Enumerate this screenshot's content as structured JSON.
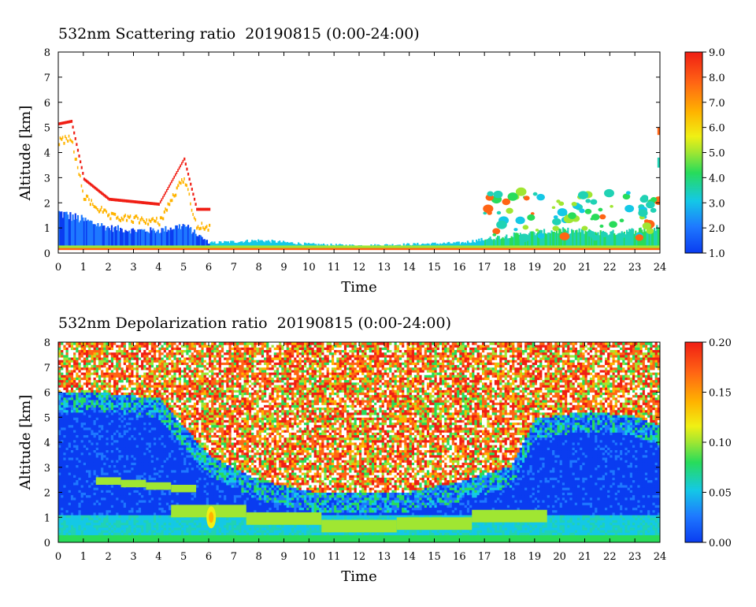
{
  "chart_data": [
    {
      "type": "heatmap",
      "title": "532nm Scattering ratio  20190815 (0:00-24:00)",
      "xlabel": "Time",
      "ylabel": "Altitude [km]",
      "xlim": [
        0,
        24
      ],
      "ylim": [
        0,
        8
      ],
      "x_ticks": [
        "0",
        "1",
        "2",
        "3",
        "4",
        "5",
        "6",
        "7",
        "8",
        "9",
        "10",
        "11",
        "12",
        "13",
        "14",
        "15",
        "16",
        "17",
        "18",
        "19",
        "20",
        "21",
        "22",
        "23",
        "24"
      ],
      "y_ticks": [
        "0",
        "1",
        "2",
        "3",
        "4",
        "5",
        "6",
        "7",
        "8"
      ],
      "colorbar": {
        "range": [
          1.0,
          9.0
        ],
        "ticks": [
          "1.0",
          "2.0",
          "3.0",
          "4.0",
          "5.0",
          "6.0",
          "7.0",
          "8.0",
          "9.0"
        ]
      },
      "features": {
        "surface_layer_top_km": [
          [
            0,
            1.6
          ],
          [
            1,
            1.3
          ],
          [
            2,
            1.0
          ],
          [
            3,
            0.9
          ],
          [
            4,
            0.9
          ],
          [
            5,
            1.1
          ],
          [
            6,
            0.4
          ],
          [
            8,
            0.5
          ],
          [
            10,
            0.35
          ],
          [
            12,
            0.3
          ],
          [
            14,
            0.35
          ],
          [
            16,
            0.4
          ],
          [
            18,
            0.7
          ],
          [
            20,
            0.9
          ],
          [
            22,
            0.8
          ],
          [
            24,
            1.0
          ]
        ],
        "cloud_top_km": [
          [
            0,
            5.2
          ],
          [
            0.5,
            5.3
          ],
          [
            1,
            3.0
          ],
          [
            2,
            2.2
          ],
          [
            3,
            2.1
          ],
          [
            4,
            2.0
          ],
          [
            5,
            3.8
          ],
          [
            5.5,
            1.8
          ]
        ]
      }
    },
    {
      "type": "heatmap",
      "title": "532nm Depolarization ratio  20190815 (0:00-24:00)",
      "xlabel": "Time",
      "ylabel": "Altitude [km]",
      "xlim": [
        0,
        24
      ],
      "ylim": [
        0,
        8
      ],
      "x_ticks": [
        "0",
        "1",
        "2",
        "3",
        "4",
        "5",
        "6",
        "7",
        "8",
        "9",
        "10",
        "11",
        "12",
        "13",
        "14",
        "15",
        "16",
        "17",
        "18",
        "19",
        "20",
        "21",
        "22",
        "23",
        "24"
      ],
      "y_ticks": [
        "0",
        "1",
        "2",
        "3",
        "4",
        "5",
        "6",
        "7",
        "8"
      ],
      "colorbar": {
        "range": [
          0.0,
          0.2
        ],
        "ticks": [
          "0.00",
          "0.05",
          "0.10",
          "0.15",
          "0.20"
        ]
      },
      "features": {
        "low_depol_layer_top_km": [
          [
            0,
            5.5
          ],
          [
            2,
            5.5
          ],
          [
            4,
            5.3
          ],
          [
            6,
            3.0
          ],
          [
            8,
            2.0
          ],
          [
            10,
            1.6
          ],
          [
            12,
            1.5
          ],
          [
            14,
            1.6
          ],
          [
            16,
            2.0
          ],
          [
            18,
            2.6
          ],
          [
            19,
            4.5
          ],
          [
            21,
            4.8
          ],
          [
            23,
            4.6
          ],
          [
            24,
            4.2
          ]
        ],
        "dust_layer_km": [
          [
            2,
            2.4
          ],
          [
            3,
            2.3
          ],
          [
            4,
            2.2
          ],
          [
            5,
            2.1
          ]
        ],
        "boundary_layer_top_km": [
          [
            6,
            1.5
          ],
          [
            9,
            1.2
          ],
          [
            12,
            0.9
          ],
          [
            15,
            1.0
          ],
          [
            18,
            1.3
          ]
        ]
      }
    }
  ]
}
